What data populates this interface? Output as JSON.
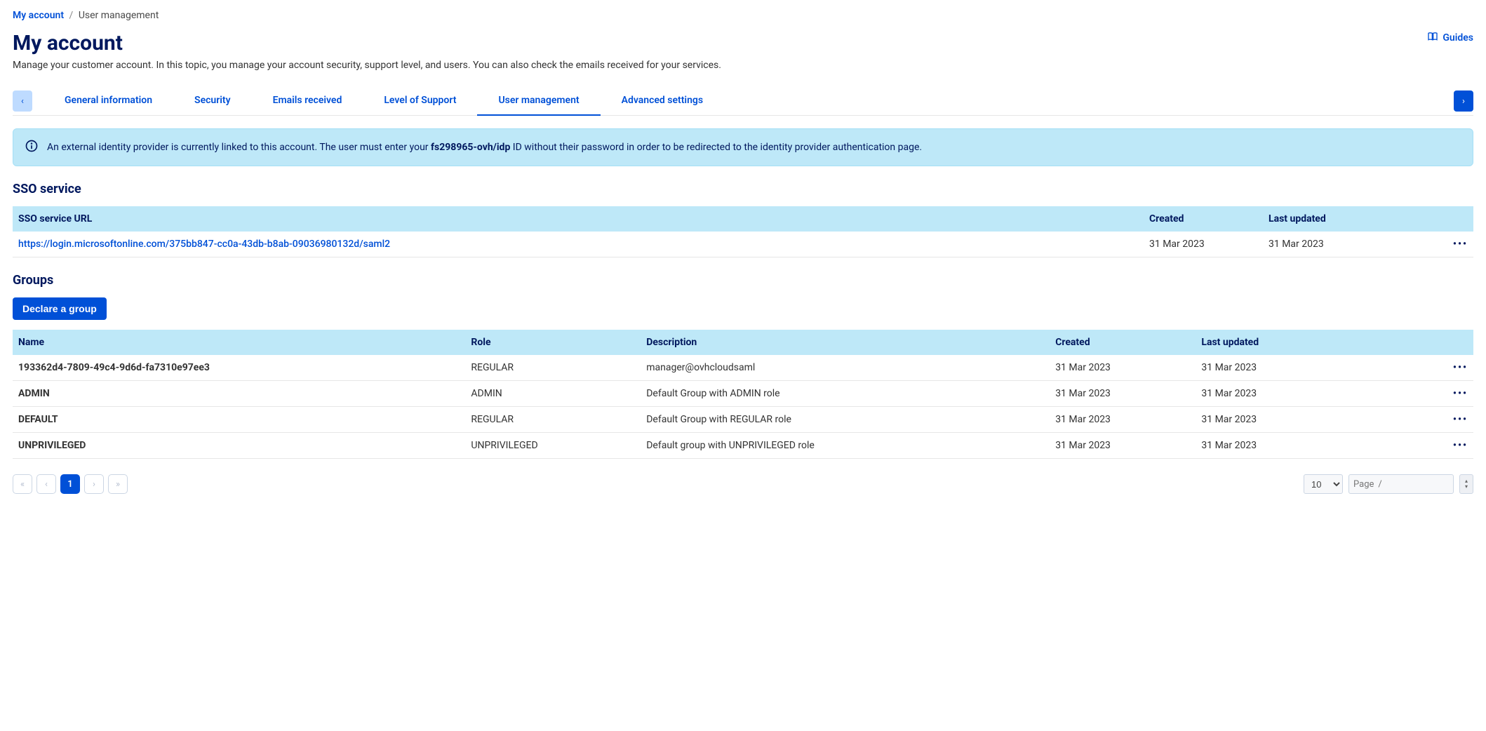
{
  "breadcrumb": {
    "root": "My account",
    "current": "User management"
  },
  "header": {
    "title": "My account",
    "guides_label": "Guides"
  },
  "description": "Manage your customer account. In this topic, you manage your account security, support level, and users. You can also check the emails received for your services.",
  "tabs": {
    "items": [
      {
        "label": "General information",
        "active": false
      },
      {
        "label": "Security",
        "active": false
      },
      {
        "label": "Emails received",
        "active": false
      },
      {
        "label": "Level of Support",
        "active": false
      },
      {
        "label": "User management",
        "active": true
      },
      {
        "label": "Advanced settings",
        "active": false
      }
    ]
  },
  "alert": {
    "prefix": "An external identity provider is currently linked to this account. The user must enter your ",
    "bold": "fs298965-ovh/idp",
    "suffix": " ID without their password in order to be redirected to the identity provider authentication page."
  },
  "sso": {
    "heading": "SSO service",
    "columns": {
      "url": "SSO service URL",
      "created": "Created",
      "updated": "Last updated"
    },
    "row": {
      "url": "https://login.microsoftonline.com/375bb847-cc0a-43db-b8ab-09036980132d/saml2",
      "created": "31 Mar 2023",
      "updated": "31 Mar 2023"
    }
  },
  "groups": {
    "heading": "Groups",
    "declare_btn": "Declare a group",
    "columns": {
      "name": "Name",
      "role": "Role",
      "description": "Description",
      "created": "Created",
      "updated": "Last updated"
    },
    "rows": [
      {
        "name": "193362d4-7809-49c4-9d6d-fa7310e97ee3",
        "role": "REGULAR",
        "description": "manager@ovhcloudsaml",
        "created": "31 Mar 2023",
        "updated": "31 Mar 2023"
      },
      {
        "name": "ADMIN",
        "role": "ADMIN",
        "description": "Default Group with ADMIN role",
        "created": "31 Mar 2023",
        "updated": "31 Mar 2023"
      },
      {
        "name": "DEFAULT",
        "role": "REGULAR",
        "description": "Default Group with REGULAR role",
        "created": "31 Mar 2023",
        "updated": "31 Mar 2023"
      },
      {
        "name": "UNPRIVILEGED",
        "role": "UNPRIVILEGED",
        "description": "Default group with UNPRIVILEGED role",
        "created": "31 Mar 2023",
        "updated": "31 Mar 2023"
      }
    ]
  },
  "pagination": {
    "first": "«",
    "prev": "‹",
    "next": "›",
    "last": "»",
    "pages": [
      "1"
    ],
    "page_size": "10",
    "page_label": "Page",
    "page_sep": "/"
  },
  "colors": {
    "primary": "#0050d7",
    "navy": "#00185e",
    "alert_bg": "#bee8f8",
    "table_header_bg": "#bee8f8",
    "border": "#e6e6e6"
  }
}
